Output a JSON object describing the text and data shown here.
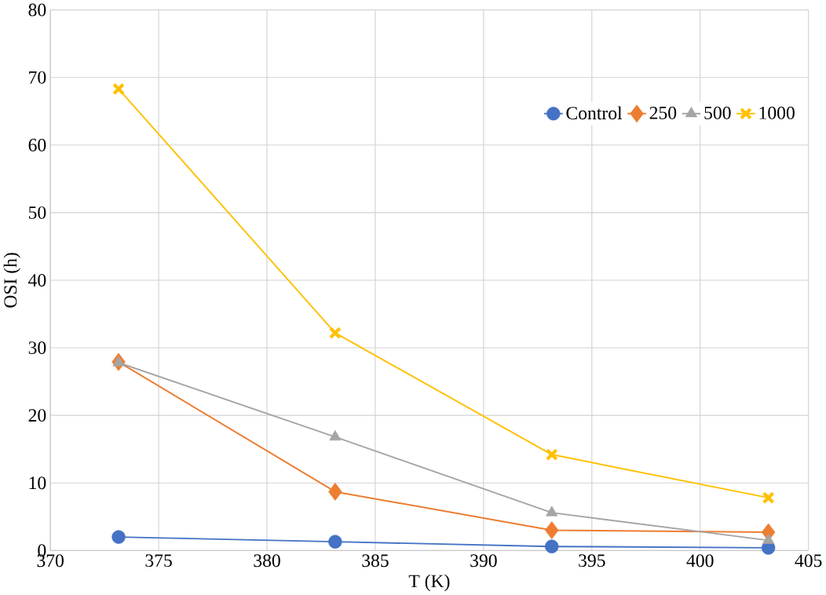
{
  "chart_data": {
    "type": "line",
    "xlabel": "T (K)",
    "ylabel": "OSI (h)",
    "x": [
      373.15,
      383.15,
      393.15,
      403.15
    ],
    "series": [
      {
        "name": "Control",
        "color": "#4472c4",
        "marker": "circle",
        "values": [
          2.0,
          1.3,
          0.6,
          0.4
        ]
      },
      {
        "name": "250",
        "color": "#ed7d31",
        "marker": "diamond",
        "values": [
          27.9,
          8.7,
          3.0,
          2.7
        ]
      },
      {
        "name": "500",
        "color": "#a5a5a5",
        "marker": "triangle",
        "values": [
          27.8,
          16.8,
          5.6,
          1.5
        ]
      },
      {
        "name": "1000",
        "color": "#ffc000",
        "marker": "cross",
        "values": [
          68.3,
          32.2,
          14.2,
          7.8
        ]
      }
    ],
    "xlim": [
      370,
      405
    ],
    "xticks": [
      370,
      375,
      380,
      385,
      390,
      395,
      400,
      405
    ],
    "ylim": [
      0,
      80
    ],
    "yticks": [
      0,
      10,
      20,
      30,
      40,
      50,
      60,
      70,
      80
    ],
    "grid": true,
    "legend": "top right",
    "line_style": "solid"
  }
}
